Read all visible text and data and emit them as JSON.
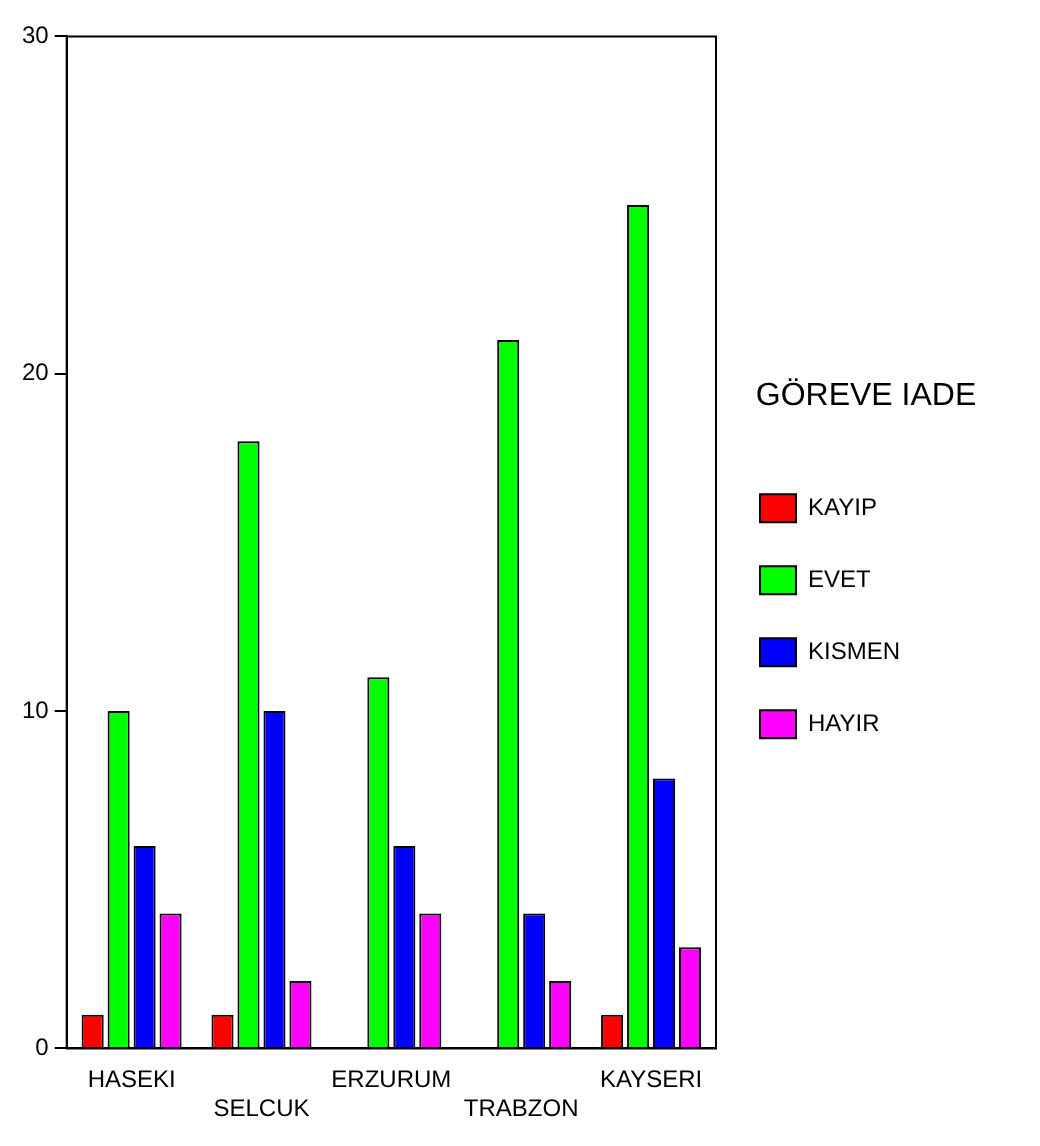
{
  "chart_data": {
    "type": "bar",
    "categories": [
      "HASEKI",
      "SELCUK",
      "ERZURUM",
      "TRABZON",
      "KAYSERI"
    ],
    "series": [
      {
        "name": "KAYIP",
        "color": "#ff0000",
        "values": [
          1,
          1,
          0,
          0,
          1
        ]
      },
      {
        "name": "EVET",
        "color": "#00ff00",
        "values": [
          10,
          18,
          11,
          21,
          25
        ]
      },
      {
        "name": "KISMEN",
        "color": "#0000ff",
        "values": [
          6,
          10,
          6,
          4,
          8
        ]
      },
      {
        "name": "HAYIR",
        "color": "#ff00ff",
        "values": [
          4,
          2,
          4,
          2,
          3
        ]
      }
    ],
    "legend_title": "GÖREVE IADE",
    "ylim": [
      0,
      30
    ],
    "yticks": [
      0,
      10,
      20,
      30
    ],
    "grid": false,
    "legend": "right"
  }
}
